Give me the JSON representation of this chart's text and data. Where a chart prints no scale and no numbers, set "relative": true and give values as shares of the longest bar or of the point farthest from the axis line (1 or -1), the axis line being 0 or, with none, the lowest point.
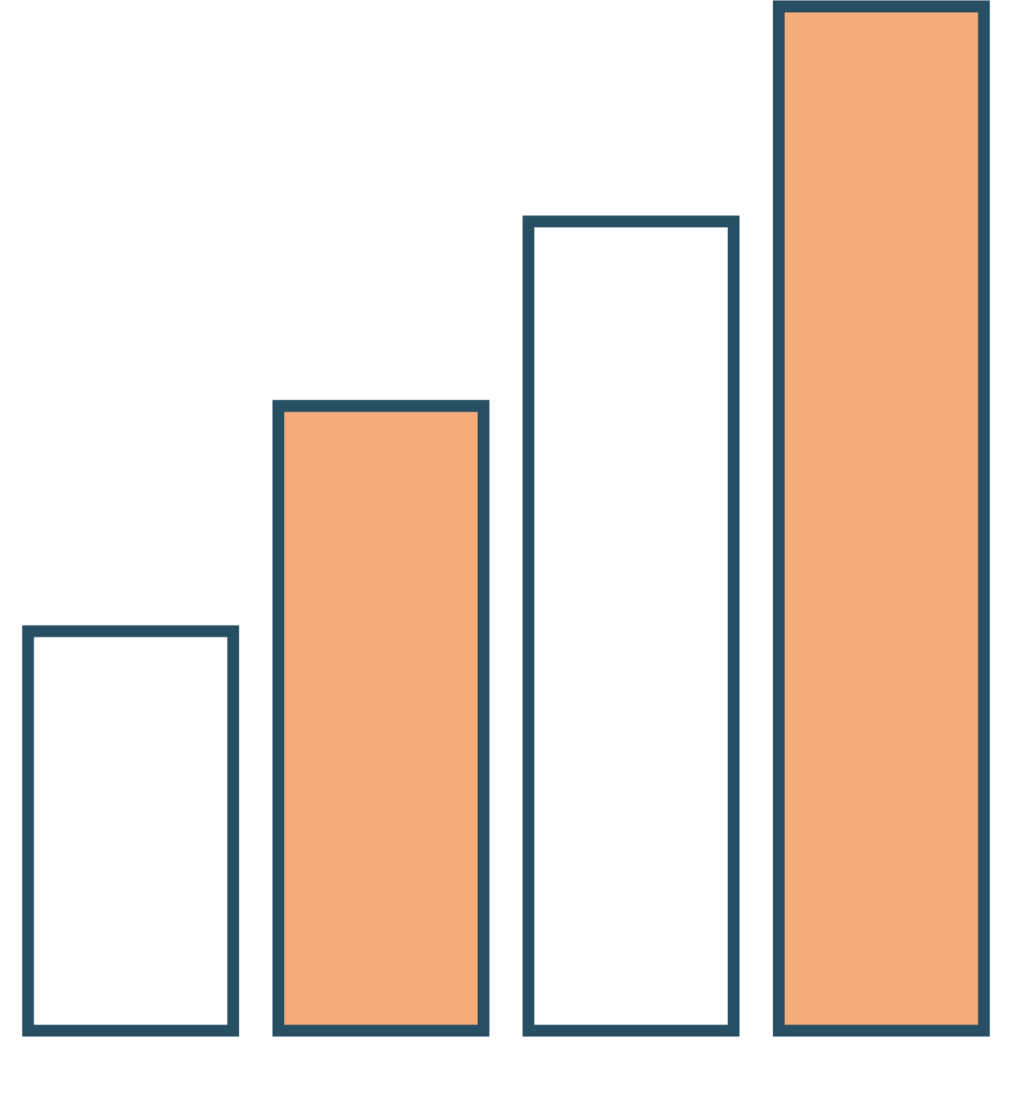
{
  "chart_data": {
    "type": "bar",
    "relative": true,
    "categories": [
      null,
      null,
      null,
      null
    ],
    "values": [
      0.39,
      0.61,
      0.79,
      1.0
    ],
    "colors": [
      "#ffffff",
      "#f4ac7b",
      "#ffffff",
      "#f4ac7b"
    ]
  }
}
